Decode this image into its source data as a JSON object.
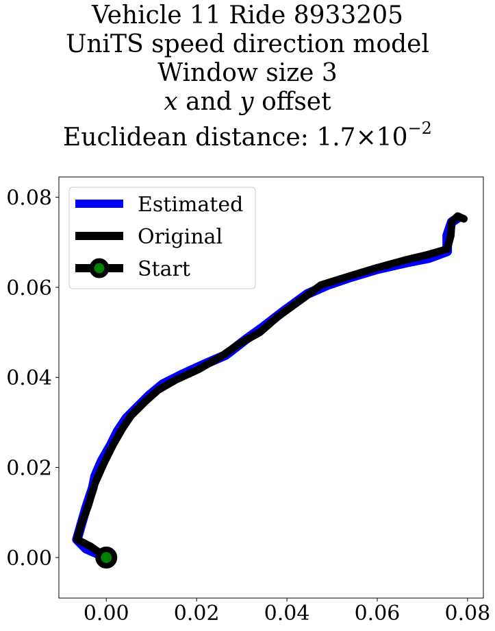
{
  "chart_data": {
    "type": "line",
    "title_lines": {
      "line1": "Vehicle 11 Ride 8933205",
      "line2": "UniTS speed direction model",
      "line3": "Window size 3",
      "line4_var_x": "x",
      "line4_and": " and ",
      "line4_var_y": "y",
      "line4_rest": " offset",
      "line5_prefix": "Euclidean distance: 1.7×10",
      "line5_exponent": "−2"
    },
    "xlabel": "",
    "ylabel": "",
    "xlim": [
      -0.0105,
      0.0835
    ],
    "ylim": [
      -0.009,
      0.0845
    ],
    "xticks": [
      0.0,
      0.02,
      0.04,
      0.06,
      0.08
    ],
    "xtick_labels": [
      "0.00",
      "0.02",
      "0.04",
      "0.06",
      "0.08"
    ],
    "yticks": [
      0.0,
      0.02,
      0.04,
      0.06,
      0.08
    ],
    "ytick_labels": [
      "0.00",
      "0.02",
      "0.04",
      "0.06",
      "0.08"
    ],
    "grid": false,
    "legend_position": "top-left",
    "series": [
      {
        "name": "Estimated",
        "color": "#0000ff",
        "points": [
          [
            0.0,
            0.0
          ],
          [
            -0.0045,
            0.002
          ],
          [
            -0.0065,
            0.004
          ],
          [
            -0.0055,
            0.0075
          ],
          [
            -0.0045,
            0.011
          ],
          [
            -0.003,
            0.0155
          ],
          [
            -0.0025,
            0.018
          ],
          [
            -0.001,
            0.0215
          ],
          [
            0.001,
            0.025
          ],
          [
            0.0025,
            0.028
          ],
          [
            0.0045,
            0.031
          ],
          [
            0.007,
            0.0335
          ],
          [
            0.0095,
            0.036
          ],
          [
            0.0125,
            0.0385
          ],
          [
            0.0165,
            0.0405
          ],
          [
            0.0215,
            0.0428
          ],
          [
            0.0265,
            0.045
          ],
          [
            0.031,
            0.0485
          ],
          [
            0.0345,
            0.051
          ],
          [
            0.039,
            0.0545
          ],
          [
            0.0445,
            0.0585
          ],
          [
            0.049,
            0.0605
          ],
          [
            0.054,
            0.0622
          ],
          [
            0.06,
            0.064
          ],
          [
            0.0665,
            0.0655
          ],
          [
            0.0715,
            0.0665
          ],
          [
            0.0755,
            0.068
          ],
          [
            0.0755,
            0.0715
          ],
          [
            0.0765,
            0.0745
          ],
          [
            0.078,
            0.0755
          ]
        ]
      },
      {
        "name": "Original",
        "color": "#000000",
        "points": [
          [
            0.0,
            0.0
          ],
          [
            -0.0035,
            0.0025
          ],
          [
            -0.0065,
            0.004
          ],
          [
            -0.0055,
            0.0075
          ],
          [
            -0.004,
            0.0115
          ],
          [
            -0.0025,
            0.0165
          ],
          [
            -0.0005,
            0.021
          ],
          [
            0.0015,
            0.025
          ],
          [
            0.0035,
            0.0285
          ],
          [
            0.0055,
            0.0315
          ],
          [
            0.0085,
            0.0345
          ],
          [
            0.0115,
            0.0372
          ],
          [
            0.0155,
            0.0395
          ],
          [
            0.0205,
            0.0418
          ],
          [
            0.0255,
            0.0447
          ],
          [
            0.0295,
            0.0475
          ],
          [
            0.034,
            0.05
          ],
          [
            0.038,
            0.0535
          ],
          [
            0.0435,
            0.0575
          ],
          [
            0.0475,
            0.0605
          ],
          [
            0.053,
            0.0622
          ],
          [
            0.0595,
            0.0642
          ],
          [
            0.066,
            0.066
          ],
          [
            0.071,
            0.0672
          ],
          [
            0.0755,
            0.0685
          ],
          [
            0.0763,
            0.0715
          ],
          [
            0.0765,
            0.0745
          ],
          [
            0.0778,
            0.0758
          ],
          [
            0.0792,
            0.0752
          ]
        ]
      }
    ],
    "start": {
      "name": "Start",
      "x": 0.0,
      "y": 0.0,
      "fill": "#008000",
      "edge": "#000000"
    },
    "legend": [
      {
        "label": "Estimated",
        "color": "#0000ff"
      },
      {
        "label": "Original",
        "color": "#000000"
      },
      {
        "label": "Start",
        "color": "#000000",
        "marker_fill": "#008000"
      }
    ]
  }
}
